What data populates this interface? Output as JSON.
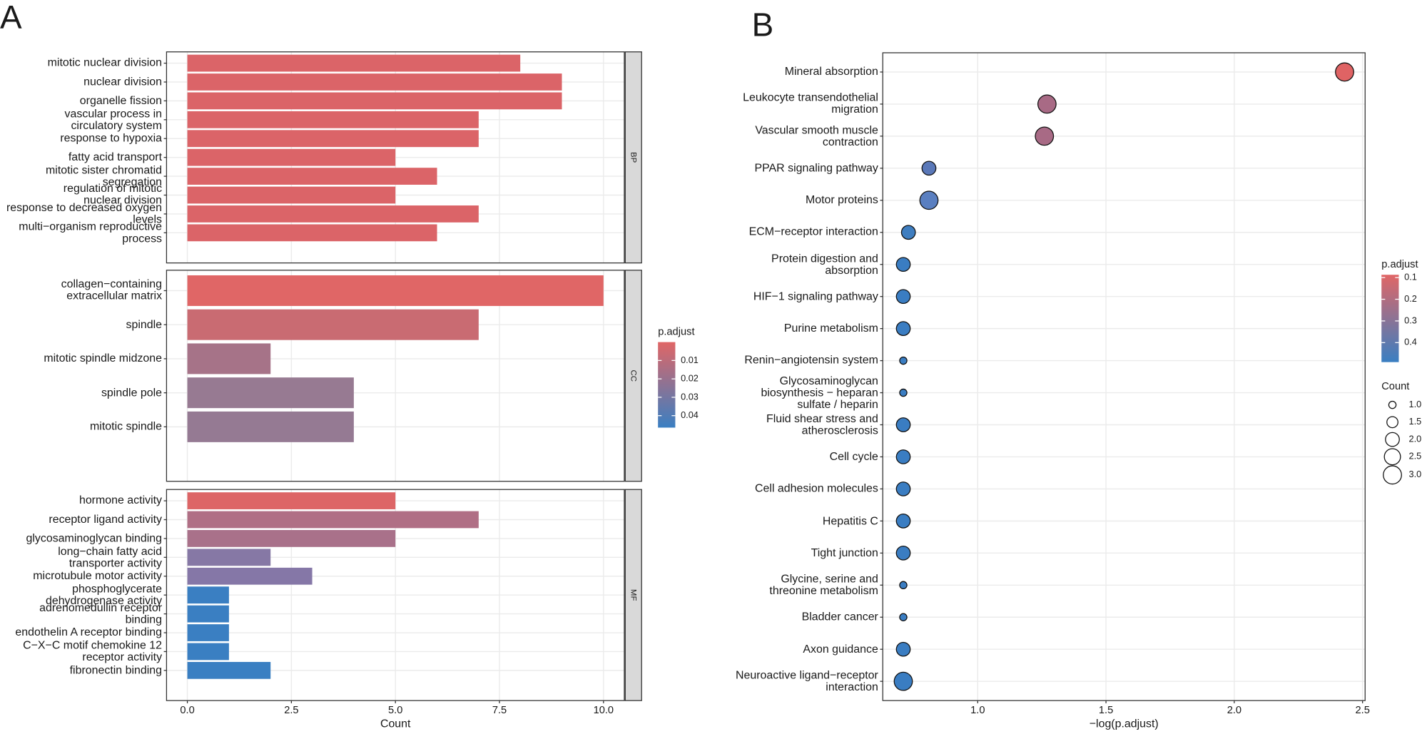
{
  "chart_data": [
    {
      "type": "facet-bar",
      "panel_label": "A",
      "xlabel": "Count",
      "xlim": [
        -0.5,
        10.5
      ],
      "xticks": [
        {
          "value": 0,
          "label": "0.0"
        },
        {
          "value": 2.5,
          "label": "2.5"
        },
        {
          "value": 5,
          "label": "5.0"
        },
        {
          "value": 7.5,
          "label": "7.5"
        },
        {
          "value": 10,
          "label": "10.0"
        }
      ],
      "grid": true,
      "facets": [
        {
          "name": "BP",
          "categories": [
            "mitotic nuclear division",
            "nuclear division",
            "organelle fission",
            "vascular process in\ncirculatory system",
            "response to hypoxia",
            "fatty acid transport",
            "mitotic sister chromatid\nsegregation",
            "regulation of mitotic\nnuclear division",
            "response to decreased oxygen\nlevels",
            "multi−organism reproductive\nprocess"
          ],
          "values": [
            8,
            9,
            9,
            7,
            7,
            5,
            6,
            5,
            7,
            6
          ],
          "colors": [
            "#db6468",
            "#db6468",
            "#db6468",
            "#db6468",
            "#db6468",
            "#db6468",
            "#db6468",
            "#db6468",
            "#db6468",
            "#db6468"
          ]
        },
        {
          "name": "CC",
          "categories": [
            "collagen−containing\nextracellular matrix",
            "spindle",
            "mitotic spindle midzone",
            "spindle pole",
            "mitotic spindle"
          ],
          "values": [
            10,
            7,
            2,
            4,
            4
          ],
          "colors": [
            "#e06666",
            "#c96b72",
            "#a67388",
            "#977a92",
            "#957a93"
          ]
        },
        {
          "name": "MF",
          "categories": [
            "hormone activity",
            "receptor ligand activity",
            "glycosaminoglycan binding",
            "long−chain fatty acid\ntransporter activity",
            "microtubule motor activity",
            "phosphoglycerate\ndehydrogenase activity",
            "adrenomedullin receptor\nbinding",
            "endothelin A receptor binding",
            "C−X−C motif chemokine 12\nreceptor activity",
            "fibronectin binding"
          ],
          "values": [
            5,
            7,
            5,
            2,
            3,
            1,
            1,
            1,
            1,
            2
          ],
          "colors": [
            "#dd6566",
            "#b06f85",
            "#a9718a",
            "#8678a5",
            "#8577a7",
            "#3a7fc2",
            "#3a7fc2",
            "#3a7fc2",
            "#3a7fc2",
            "#3a7fc2"
          ]
        }
      ],
      "legend": {
        "title": "p.adjust",
        "lim": [
          0,
          0.0465
        ],
        "ticks": [
          0.01,
          0.02,
          0.03,
          0.04
        ],
        "colors": [
          "#e06666",
          "#3a7fc2"
        ]
      }
    },
    {
      "type": "dot",
      "panel_label": "B",
      "xlabel": "−log(p.adjust)",
      "xlim": [
        0.63,
        2.51
      ],
      "xticks": [
        {
          "value": 1,
          "label": "1.0"
        },
        {
          "value": 1.5,
          "label": "1.5"
        },
        {
          "value": 2,
          "label": "2.0"
        },
        {
          "value": 2.5,
          "label": "2.5"
        }
      ],
      "grid": true,
      "categories": [
        "Mineral absorption",
        "Leukocyte transendothelial\nmigration",
        "Vascular smooth muscle\ncontraction",
        "PPAR signaling pathway",
        "Motor proteins",
        "ECM−receptor interaction",
        "Protein digestion and\nabsorption",
        "HIF−1 signaling pathway",
        "Purine metabolism",
        "Renin−angiotensin system",
        "Glycosaminoglycan\nbiosynthesis − heparan\nsulfate / heparin",
        "Fluid shear stress and\natherosclerosis",
        "Cell cycle",
        "Cell adhesion molecules",
        "Hepatitis C",
        "Tight junction",
        "Glycine, serine and\nthreonine metabolism",
        "Bladder cancer",
        "Axon guidance",
        "Neuroactive ligand−receptor\ninteraction"
      ],
      "values": [
        2.43,
        1.27,
        1.26,
        0.81,
        0.81,
        0.73,
        0.71,
        0.71,
        0.71,
        0.71,
        0.71,
        0.71,
        0.71,
        0.71,
        0.71,
        0.71,
        0.71,
        0.71,
        0.71,
        0.71
      ],
      "sizes": [
        3,
        3,
        3,
        2,
        3,
        2,
        2,
        2,
        2,
        1,
        1,
        2,
        2,
        2,
        2,
        2,
        1,
        1,
        2,
        3
      ],
      "colors": [
        "#df6364",
        "#a86a85",
        "#a86a85",
        "#5a78b8",
        "#5a7fc0",
        "#3f7ec0",
        "#3a7dc2",
        "#3a7dc2",
        "#3a7dc2",
        "#3a7dc2",
        "#3a7dc2",
        "#3a7dc2",
        "#3a7dc2",
        "#3a7dc2",
        "#3a7dc2",
        "#3a7dc2",
        "#3a7dc2",
        "#3a7dc2",
        "#3a7dc2",
        "#3a7dc2"
      ],
      "color_legend": {
        "title": "p.adjust",
        "lim": [
          0.087,
          0.49
        ],
        "ticks": [
          0.1,
          0.2,
          0.3,
          0.4
        ],
        "colors": [
          "#e06666",
          "#3a7fc2"
        ]
      },
      "size_legend": {
        "title": "Count",
        "ticks": [
          {
            "value": 1,
            "label": "1.0"
          },
          {
            "value": 1.5,
            "label": "1.5"
          },
          {
            "value": 2,
            "label": "2.0"
          },
          {
            "value": 2.5,
            "label": "2.5"
          },
          {
            "value": 3,
            "label": "3.0"
          }
        ]
      }
    }
  ]
}
